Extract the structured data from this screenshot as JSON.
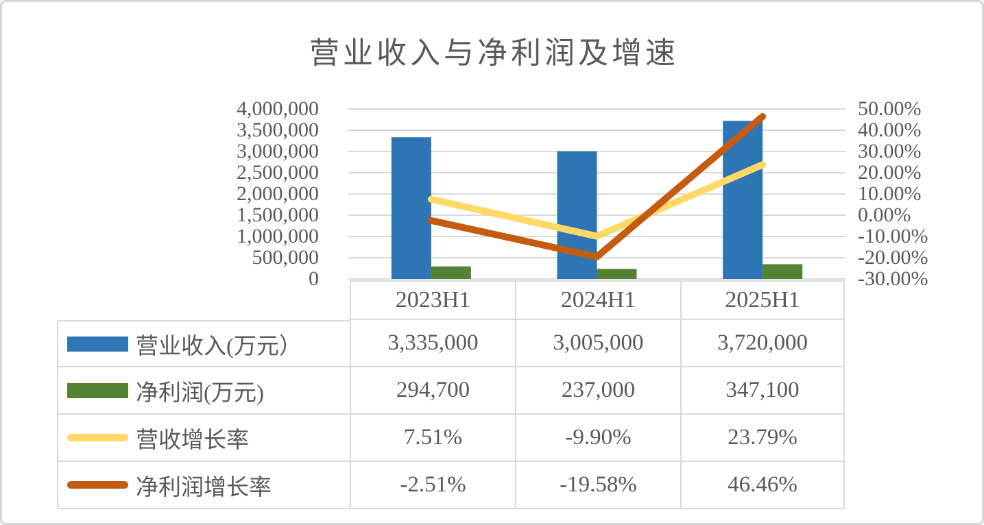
{
  "title": "营业收入与净利润及增速",
  "colors": {
    "revenue_bar": "#2E75B6",
    "net_profit_bar": "#548235",
    "revenue_growth_line": "#FFD966",
    "net_profit_growth_line": "#C55A11",
    "gridline": "#D9D9D9",
    "table_border": "#D9D9D9",
    "text": "#595959"
  },
  "chart_data": {
    "type": "combo-bar-line",
    "title": "营业收入与净利润及增速",
    "categories": [
      "2023H1",
      "2024H1",
      "2025H1"
    ],
    "bar_series": [
      {
        "key": "revenue-bar",
        "name": "营业收入(万元）",
        "color": "#2E75B6",
        "axis": "left",
        "values": [
          3335000,
          3005000,
          3720000
        ]
      },
      {
        "key": "net-profit-bar",
        "name": "净利润(万元)",
        "color": "#548235",
        "axis": "left",
        "values": [
          294700,
          237000,
          347100
        ]
      }
    ],
    "line_series": [
      {
        "key": "revenue-growth-line",
        "name": "营收增长率",
        "color": "#FFD966",
        "axis": "right",
        "values": [
          7.51,
          -9.9,
          23.79
        ]
      },
      {
        "key": "net-profit-growth-line",
        "name": "净利润增长率",
        "color": "#C55A11",
        "axis": "right",
        "values": [
          -2.51,
          -19.58,
          46.46
        ]
      }
    ],
    "left_axis": {
      "min": 0,
      "max": 4000000,
      "step": 500000,
      "tick_labels": [
        "4,000,000",
        "3,500,000",
        "3,000,000",
        "2,500,000",
        "2,000,000",
        "1,500,000",
        "1,000,000",
        "500,000",
        "0"
      ]
    },
    "right_axis": {
      "min": -30,
      "max": 50,
      "step": 10,
      "tick_labels": [
        "50.00%",
        "40.00%",
        "30.00%",
        "20.00%",
        "10.00%",
        "0.00%",
        "-10.00%",
        "-20.00%",
        "-30.00%"
      ]
    },
    "grid": true,
    "legend_position": "table-left"
  },
  "table": {
    "column_headers": [
      "2023H1",
      "2024H1",
      "2025H1"
    ],
    "rows": [
      {
        "label": "营业收入(万元）",
        "swatch": "bar",
        "color": "#2E75B6",
        "values": [
          "3,335,000",
          "3,005,000",
          "3,720,000"
        ]
      },
      {
        "label": "净利润(万元)",
        "swatch": "bar",
        "color": "#548235",
        "values": [
          "294,700",
          "237,000",
          "347,100"
        ]
      },
      {
        "label": "营收增长率",
        "swatch": "line",
        "color": "#FFD966",
        "values": [
          "7.51%",
          "-9.90%",
          "23.79%"
        ]
      },
      {
        "label": "净利润增长率",
        "swatch": "line",
        "color": "#C55A11",
        "values": [
          "-2.51%",
          "-19.58%",
          "46.46%"
        ]
      }
    ]
  }
}
